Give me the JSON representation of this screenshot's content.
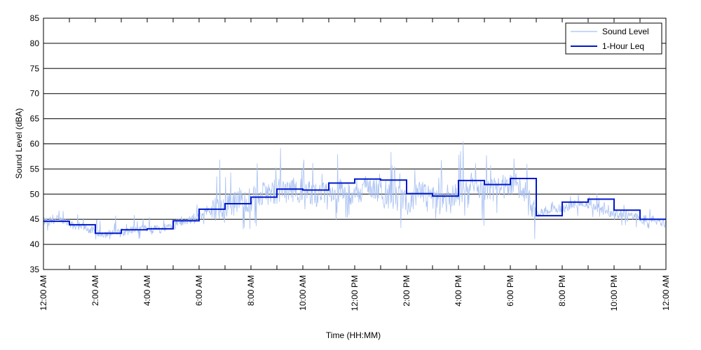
{
  "chart_data": {
    "type": "line",
    "xlabel": "Time (HH:MM)",
    "ylabel": "Sound Level (dBA)",
    "ylim": [
      35,
      85
    ],
    "xlim": [
      0,
      24
    ],
    "yticks": [
      35,
      40,
      45,
      50,
      55,
      60,
      65,
      70,
      75,
      80,
      85
    ],
    "xticks": [
      {
        "h": 0,
        "label": "12:00 AM"
      },
      {
        "h": 2,
        "label": "2:00 AM"
      },
      {
        "h": 4,
        "label": "4:00 AM"
      },
      {
        "h": 6,
        "label": "6:00 AM"
      },
      {
        "h": 8,
        "label": "8:00 AM"
      },
      {
        "h": 10,
        "label": "10:00 AM"
      },
      {
        "h": 12,
        "label": "12:00 PM"
      },
      {
        "h": 14,
        "label": "2:00 PM"
      },
      {
        "h": 16,
        "label": "4:00 PM"
      },
      {
        "h": 18,
        "label": "6:00 PM"
      },
      {
        "h": 20,
        "label": "8:00 PM"
      },
      {
        "h": 22,
        "label": "10:00 PM"
      },
      {
        "h": 24,
        "label": "12:00 AM"
      }
    ],
    "grid": "horizontal",
    "legend_position": "top-right",
    "series": [
      {
        "name": "Sound Level",
        "color": "#a9c1f2",
        "x": [
          0,
          0.5,
          1,
          1.5,
          2,
          2.5,
          3,
          3.5,
          4,
          4.5,
          5,
          5.5,
          6,
          6.5,
          7,
          7.5,
          8,
          8.5,
          9,
          9.5,
          10,
          10.5,
          11,
          11.5,
          12,
          12.5,
          13,
          13.5,
          14,
          14.5,
          15,
          15.5,
          16,
          16.5,
          17,
          17.5,
          18,
          18.5,
          19,
          19.5,
          20,
          20.5,
          21,
          21.5,
          22,
          22.5,
          23,
          23.5,
          24
        ],
        "y": [
          44.5,
          45,
          44,
          43.5,
          42.5,
          42,
          42.5,
          43,
          43,
          43,
          44,
          44.5,
          46,
          47,
          47.5,
          48.5,
          49,
          50,
          50.5,
          51,
          50.5,
          50,
          50,
          51,
          50,
          52,
          50,
          51,
          48,
          50,
          49,
          48,
          51,
          52,
          50,
          51,
          52,
          51,
          46,
          47,
          47,
          48,
          48,
          47,
          46,
          46,
          45,
          45,
          44
        ]
      },
      {
        "name": "1-Hour Leq",
        "color": "#0018cc",
        "step": true,
        "values": [
          44.6,
          43.9,
          42.2,
          42.9,
          43.1,
          44.7,
          47.0,
          48.1,
          49.4,
          51.0,
          50.8,
          52.2,
          53.0,
          52.8,
          50.1,
          49.6,
          52.7,
          51.9,
          53.1,
          45.7,
          48.4,
          49.0,
          46.8,
          45.0
        ]
      }
    ]
  }
}
